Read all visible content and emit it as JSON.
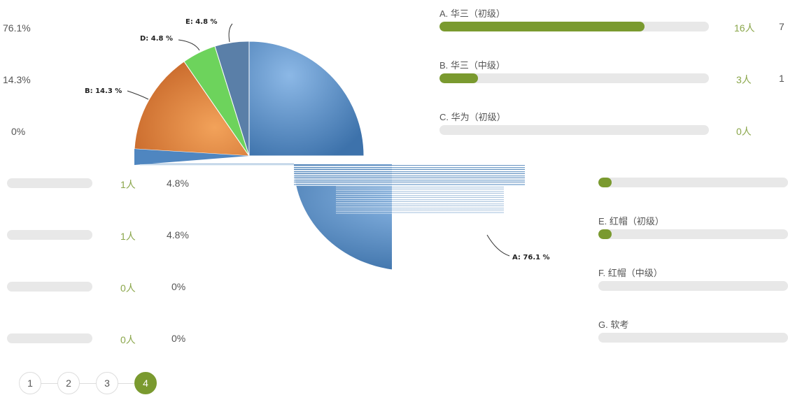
{
  "pie_labels": {
    "a": "A: 76.1 %",
    "b": "B: 14.3 %",
    "d": "D: 4.8 %",
    "e": "E: 4.8 %"
  },
  "left_pcts": [
    "76.1%",
    "14.3%",
    "0%"
  ],
  "left_rows": [
    {
      "count": "1人",
      "pct": "4.8%"
    },
    {
      "count": "1人",
      "pct": "4.8%"
    },
    {
      "count": "0人",
      "pct": "0%"
    },
    {
      "count": "0人",
      "pct": "0%"
    }
  ],
  "options_top": [
    {
      "label": "A. 华三（初级）",
      "count": "16人",
      "trail": "7",
      "fraction": 0.761
    },
    {
      "label": "B. 华三（中级）",
      "count": "3人",
      "trail": "1",
      "fraction": 0.143
    },
    {
      "label": "C. 华为（初级）",
      "count": "0人",
      "trail": "",
      "fraction": 0
    }
  ],
  "options_bottom": [
    {
      "label": "",
      "fraction": 0.048
    },
    {
      "label": "E. 红帽（初级）",
      "fraction": 0.048
    },
    {
      "label": "F. 红帽（中级）",
      "fraction": 0
    },
    {
      "label": "G. 软考",
      "fraction": 0
    }
  ],
  "pager": {
    "pages": [
      "1",
      "2",
      "3",
      "4"
    ],
    "current": "4"
  },
  "colors": {
    "accent": "#7a9a2f",
    "slice_a": "#4f86c0",
    "slice_b": "#e0823a",
    "slice_d": "#6dd35c",
    "slice_e": "#5a7fa8"
  },
  "chart_data": {
    "type": "pie",
    "categories": [
      "A",
      "B",
      "C",
      "D",
      "E",
      "F",
      "G"
    ],
    "values": [
      76.1,
      14.3,
      0,
      4.8,
      4.8,
      0,
      0
    ]
  }
}
